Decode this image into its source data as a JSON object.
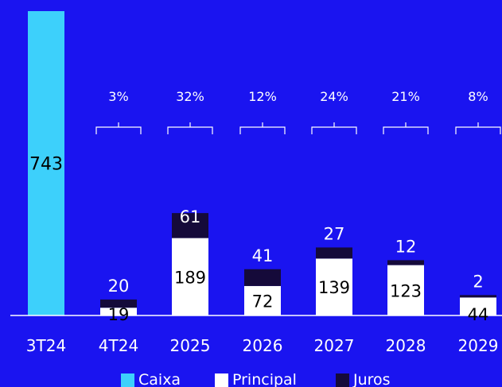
{
  "colors": {
    "background": "#1a14f0",
    "caixa": "#3dd0fb",
    "principal": "#ffffff",
    "juros": "#150a3a",
    "text_light": "#ffffff",
    "text_dark": "#000000"
  },
  "chart_data": {
    "type": "bar",
    "stacked": true,
    "categories": [
      "3T24",
      "4T24",
      "2025",
      "2026",
      "2027",
      "2028",
      "2029"
    ],
    "series": [
      {
        "name": "Caixa",
        "values": [
          743,
          null,
          null,
          null,
          null,
          null,
          null
        ]
      },
      {
        "name": "Principal",
        "values": [
          null,
          19,
          189,
          72,
          139,
          123,
          44
        ]
      },
      {
        "name": "Juros",
        "values": [
          null,
          20,
          61,
          41,
          27,
          12,
          2
        ]
      }
    ],
    "percent_labels": [
      "3%",
      "32%",
      "12%",
      "24%",
      "21%",
      "8%"
    ],
    "legend": [
      "Caixa",
      "Principal",
      "Juros"
    ],
    "legend_position": "bottom",
    "grid": false,
    "ylim": [
      0,
      743
    ]
  }
}
